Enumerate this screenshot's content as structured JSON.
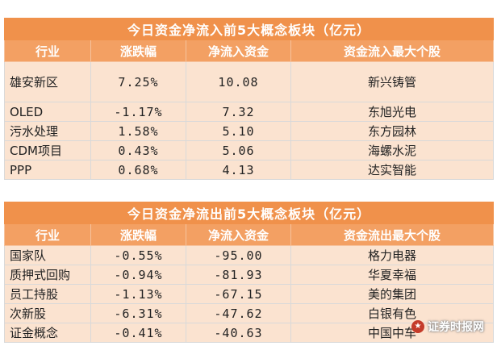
{
  "inflow": {
    "title": "今日资金净流入前5大概念板块（亿元）",
    "headers": [
      "行业",
      "涨跌幅",
      "净流入资金",
      "资金流入最大个股"
    ],
    "rows": [
      {
        "sector": "雄安新区",
        "change": "7.25%",
        "net": "10.08",
        "stock": "新兴铸管"
      },
      {
        "sector": "OLED",
        "change": "-1.17%",
        "net": "7.32",
        "stock": "东旭光电"
      },
      {
        "sector": "污水处理",
        "change": "1.58%",
        "net": "5.10",
        "stock": "东方园林"
      },
      {
        "sector": "CDM项目",
        "change": "0.43%",
        "net": "5.06",
        "stock": "海螺水泥"
      },
      {
        "sector": "PPP",
        "change": "0.68%",
        "net": "4.13",
        "stock": "达实智能"
      }
    ]
  },
  "outflow": {
    "title": "今日资金净流出前5大概念板块（亿元）",
    "headers": [
      "行业",
      "涨跌幅",
      "净流入资金",
      "资金流出最大个股"
    ],
    "rows": [
      {
        "sector": "国家队",
        "change": "-0.55%",
        "net": "-95.00",
        "stock": "格力电器"
      },
      {
        "sector": "质押式回购",
        "change": "-0.94%",
        "net": "-81.93",
        "stock": "华夏幸福"
      },
      {
        "sector": "员工持股",
        "change": "-1.13%",
        "net": "-67.15",
        "stock": "美的集团"
      },
      {
        "sector": "次新股",
        "change": "-6.31%",
        "net": "-47.62",
        "stock": "白银有色"
      },
      {
        "sector": "证金概念",
        "change": "-0.41%",
        "net": "-40.63",
        "stock": "中国中车"
      }
    ]
  },
  "watermark": {
    "text": "证券时报网",
    "icon": "logo-icon"
  }
}
